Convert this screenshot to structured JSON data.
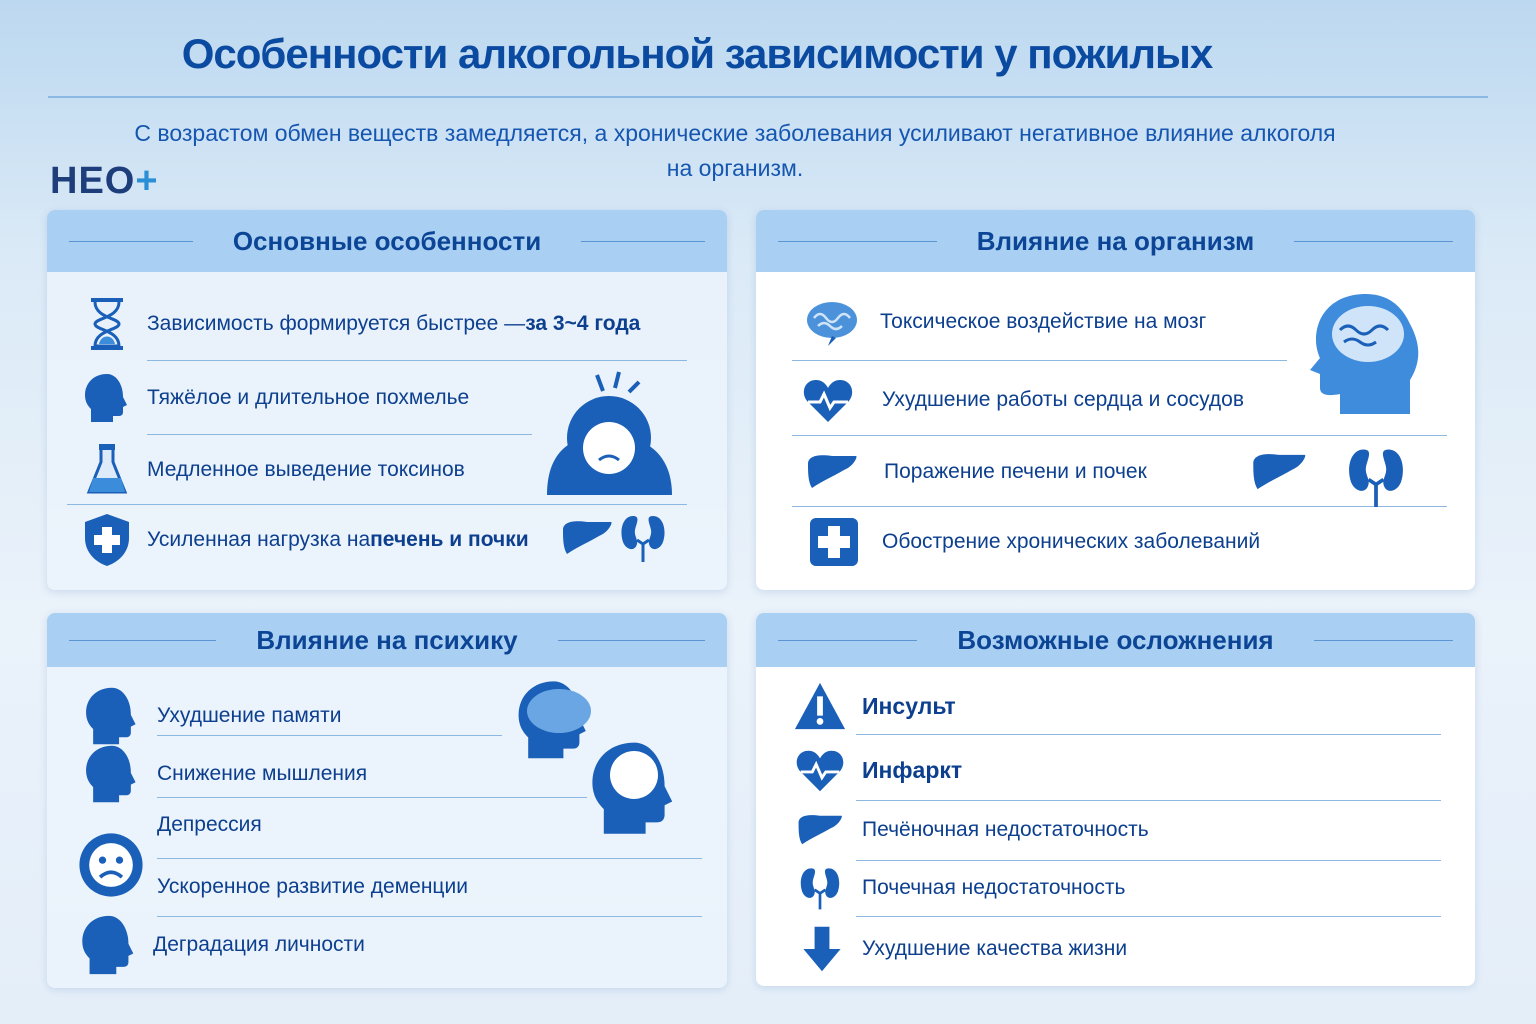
{
  "title": "Особенности алкогольной зависимости у пожилых",
  "subtitle": "С возрастом обмен веществ замедляется, а хронические заболевания усиливают негативное влияние алкоголя на организм.",
  "logo": {
    "text": "НЕО",
    "plus": "+"
  },
  "colors": {
    "primary": "#0a4aa0",
    "accent": "#2c8fd6",
    "header_bg": "#a9d0f2"
  },
  "panels": {
    "main": {
      "title": "Основные особенности",
      "items": [
        {
          "text": "Зависимость формируется быстрее — ",
          "bold": "за 3~4 года",
          "icon": "hourglass-icon"
        },
        {
          "text": "Тяжёлое и длительное похмелье",
          "icon": "head-icon"
        },
        {
          "text": "Медленное выведение токсинов",
          "icon": "flask-icon"
        },
        {
          "text": "Усиленная нагрузка на ",
          "bold": "печень и почки",
          "icon": "shield-cross-icon"
        }
      ]
    },
    "body": {
      "title": "Влияние на организм",
      "items": [
        {
          "text": "Токсическое воздействие на мозг",
          "icon": "brain-icon"
        },
        {
          "text": "Ухудшение работы сердца и сосудов",
          "icon": "heart-pulse-icon"
        },
        {
          "text": "Поражение печени и почек",
          "icon": "liver-icon"
        },
        {
          "text": "Обострение хронических заболеваний",
          "icon": "medical-cross-icon"
        }
      ]
    },
    "psyche": {
      "title": "Влияние на психику",
      "items": [
        {
          "text": "Ухудшение памяти",
          "icon": "head-brain-icon"
        },
        {
          "text": "Снижение мышления",
          "icon": "head-cloud-icon"
        },
        {
          "text": "Депрессия",
          "icon": "sad-face-icon"
        },
        {
          "text": "Ускоренное развитие деменции",
          "icon": "sad-face-icon"
        },
        {
          "text": "Деградация личности",
          "icon": "head-icon"
        }
      ]
    },
    "complications": {
      "title": "Возможные осложнения",
      "items": [
        {
          "text": "Инсульт",
          "icon": "warning-icon"
        },
        {
          "text": "Инфаркт",
          "icon": "heart-pulse-icon"
        },
        {
          "text": "Печёночная недостаточность",
          "icon": "liver-icon"
        },
        {
          "text": "Почечная недостаточность",
          "icon": "kidneys-icon"
        },
        {
          "text": "Ухудшение качества жизни",
          "icon": "arrow-down-icon"
        }
      ]
    }
  }
}
